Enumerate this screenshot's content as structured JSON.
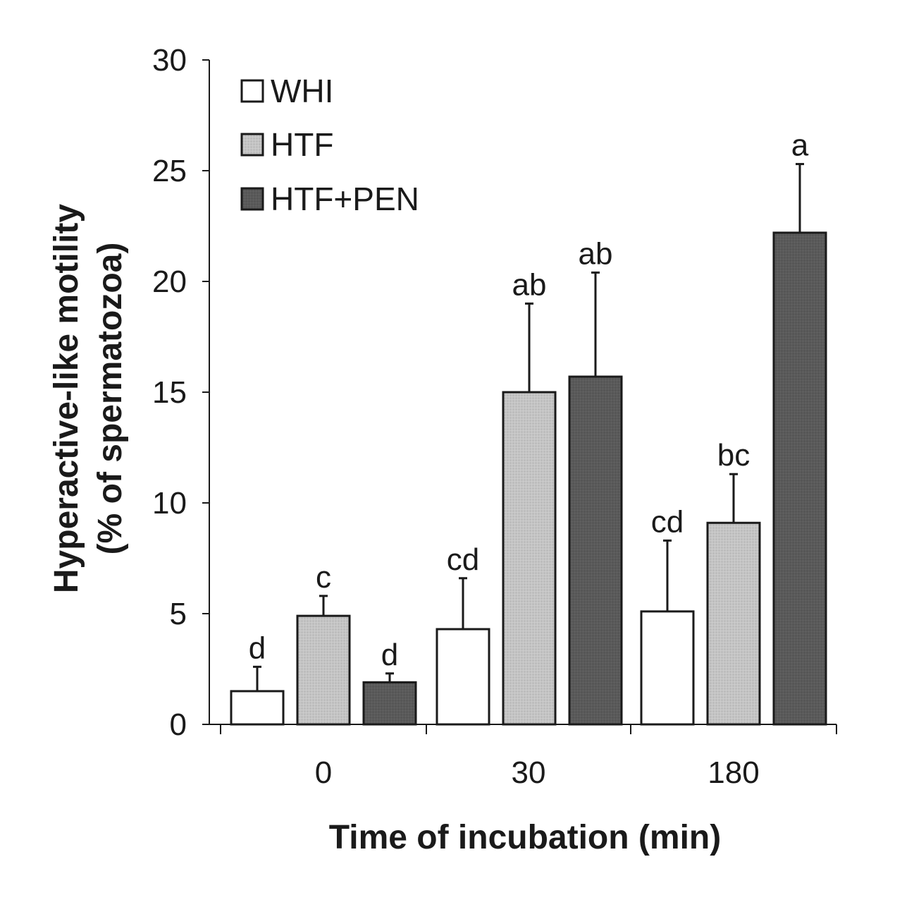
{
  "chart_data": {
    "type": "bar",
    "title": "",
    "xlabel": "Time of incubation (min)",
    "ylabel_line1": "Hyperactive-like motility",
    "ylabel_line2": "(% of spermatozoa)",
    "categories": [
      "0",
      "30",
      "180"
    ],
    "ylim": [
      0,
      30
    ],
    "yticks": [
      0,
      5,
      10,
      15,
      20,
      25,
      30
    ],
    "ytick_labels": [
      "0",
      "5",
      "10",
      "15",
      "20",
      "25",
      "30"
    ],
    "legend_position": "top-left",
    "grid": false,
    "series": [
      {
        "name": "WHI",
        "color": "#ffffff",
        "values": [
          1.5,
          4.3,
          5.1
        ],
        "errors": [
          1.1,
          2.3,
          3.2
        ],
        "labels": [
          "d",
          "cd",
          "cd"
        ]
      },
      {
        "name": "HTF",
        "color": "#c0c0c0",
        "values": [
          4.9,
          15.0,
          9.1
        ],
        "errors": [
          0.9,
          4.0,
          2.2
        ],
        "labels": [
          "c",
          "ab",
          "bc"
        ]
      },
      {
        "name": "HTF+PEN",
        "color": "#585858",
        "values": [
          1.9,
          15.7,
          22.2
        ],
        "errors": [
          0.4,
          4.7,
          3.1
        ],
        "labels": [
          "d",
          "ab",
          "a"
        ]
      }
    ]
  }
}
